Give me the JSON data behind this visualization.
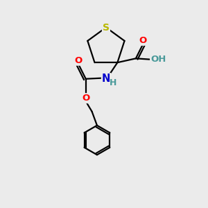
{
  "background_color": "#ebebeb",
  "atom_colors": {
    "S": "#b8b800",
    "N": "#0000cc",
    "O": "#ff0000",
    "C": "#000000",
    "H": "#4a9a9a"
  },
  "figsize": [
    3.0,
    3.0
  ],
  "dpi": 100
}
